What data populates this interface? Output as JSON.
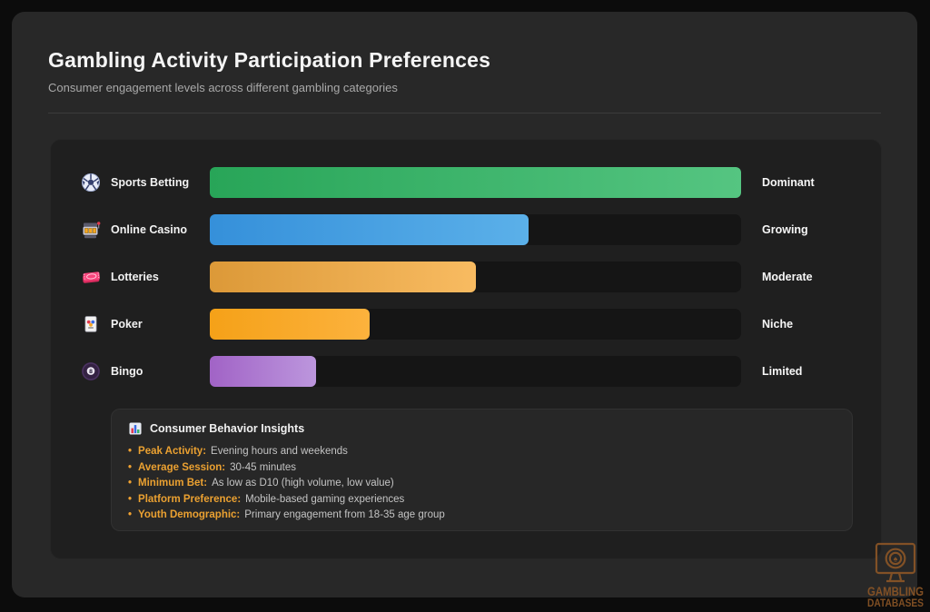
{
  "page": {
    "title": "Gambling Activity Participation Preferences",
    "subtitle": "Consumer engagement levels across different gambling categories"
  },
  "chart_data": {
    "type": "bar",
    "orientation": "horizontal",
    "title": "Gambling Activity Participation Preferences",
    "subtitle": "Consumer engagement levels across different gambling categories",
    "categories": [
      "Sports Betting",
      "Online Casino",
      "Lotteries",
      "Poker",
      "Bingo"
    ],
    "values": [
      100,
      60,
      50,
      30,
      20
    ],
    "value_labels": [
      "Dominant",
      "Growing",
      "Moderate",
      "Niche",
      "Limited"
    ],
    "xlim": [
      0,
      100
    ],
    "grid": false,
    "legend": false,
    "track_color": "#151515"
  },
  "chart": {
    "rows": [
      {
        "icon": "soccer-ball",
        "label": "Sports Betting",
        "status": "Dominant",
        "value": 100,
        "color_from": "#28a558",
        "color_to": "#55c581"
      },
      {
        "icon": "slot-machine",
        "label": "Online Casino",
        "status": "Growing",
        "value": 60,
        "color_from": "#3590da",
        "color_to": "#5bb0e9"
      },
      {
        "icon": "admission-ticket",
        "label": "Lotteries",
        "status": "Moderate",
        "value": 50,
        "color_from": "#dc9938",
        "color_to": "#f8bb61"
      },
      {
        "icon": "joker-card",
        "label": "Poker",
        "status": "Niche",
        "value": 30,
        "color_from": "#f5a118",
        "color_to": "#fcb23d"
      },
      {
        "icon": "pool-8-ball",
        "label": "Bingo",
        "status": "Limited",
        "value": 20,
        "color_from": "#a163c6",
        "color_to": "#bc96dd"
      }
    ]
  },
  "insights": {
    "icon": "bar-chart",
    "title": "Consumer Behavior Insights",
    "bullet": "•",
    "accent_color": "#eba131",
    "items": [
      {
        "label": "Peak Activity:",
        "text": "Evening hours and weekends"
      },
      {
        "label": "Average Session:",
        "text": "30-45 minutes"
      },
      {
        "label": "Minimum Bet:",
        "text": "As low as D10 (high volume, low value)"
      },
      {
        "label": "Platform Preference:",
        "text": "Mobile-based gaming experiences"
      },
      {
        "label": "Youth Demographic:",
        "text": "Primary engagement from 18-35 age group"
      }
    ]
  },
  "watermark": {
    "line1": "GAMBLING",
    "line2": "DATABASES",
    "color": "#8a5526"
  }
}
